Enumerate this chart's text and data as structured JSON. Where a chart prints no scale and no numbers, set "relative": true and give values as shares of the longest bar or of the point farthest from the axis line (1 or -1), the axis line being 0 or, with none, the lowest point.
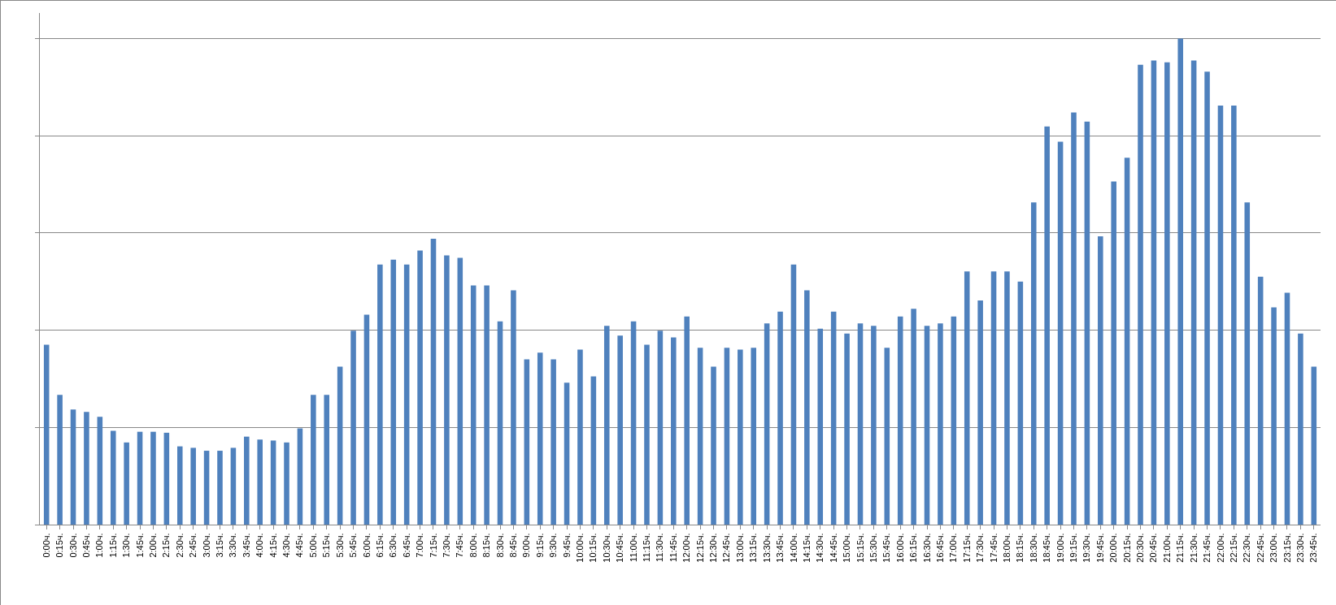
{
  "chart_data": {
    "type": "bar",
    "relative": true,
    "grid": "y",
    "color": "#4f81bd",
    "categories": [
      "0:00ч.",
      "0:15ч.",
      "0:30ч.",
      "0:45ч.",
      "1:00ч.",
      "1:15ч.",
      "1:30ч.",
      "1:45ч.",
      "2:00ч.",
      "2:15ч.",
      "2:30ч.",
      "2:45ч.",
      "3:00ч.",
      "3:15ч.",
      "3:30ч.",
      "3:45ч.",
      "4:00ч.",
      "4:15ч.",
      "4:30ч.",
      "4:45ч.",
      "5:00ч.",
      "5:15ч.",
      "5:30ч.",
      "5:45ч.",
      "6:00ч.",
      "6:15ч.",
      "6:30ч.",
      "6:45ч.",
      "7:00ч.",
      "7:15ч.",
      "7:30ч.",
      "7:45ч.",
      "8:00ч.",
      "8:15ч.",
      "8:30ч.",
      "8:45ч.",
      "9:00ч.",
      "9:15ч.",
      "9:30ч.",
      "9:45ч.",
      "10:00ч.",
      "10:15ч.",
      "10:30ч.",
      "10:45ч.",
      "11:00ч.",
      "11:15ч.",
      "11:30ч.",
      "11:45ч.",
      "12:00ч.",
      "12:15ч.",
      "12:30ч.",
      "12:45ч.",
      "13:00ч.",
      "13:15ч.",
      "13:30ч.",
      "13:45ч.",
      "14:00ч.",
      "14:15ч.",
      "14:30ч.",
      "14:45ч.",
      "15:00ч.",
      "15:15ч.",
      "15:30ч.",
      "15:45ч.",
      "16:00ч.",
      "16:15ч.",
      "16:30ч.",
      "16:45ч.",
      "17:00ч.",
      "17:15ч.",
      "17:30ч.",
      "17:45ч.",
      "18:00ч.",
      "18:15ч.",
      "18:30ч.",
      "18:45ч.",
      "19:00ч.",
      "19:15ч.",
      "19:30ч.",
      "19:45ч.",
      "20:00ч.",
      "20:15ч.",
      "20:30ч.",
      "20:45ч.",
      "21:00ч.",
      "21:15ч.",
      "21:30ч.",
      "21:45ч.",
      "22:00ч.",
      "22:15ч.",
      "22:30ч.",
      "22:45ч.",
      "23:00ч.",
      "23:15ч.",
      "23:30ч.",
      "23:45ч."
    ],
    "values": [
      0.37,
      0.267,
      0.237,
      0.232,
      0.222,
      0.193,
      0.169,
      0.191,
      0.191,
      0.189,
      0.161,
      0.158,
      0.152,
      0.152,
      0.158,
      0.181,
      0.175,
      0.173,
      0.169,
      0.198,
      0.267,
      0.267,
      0.325,
      0.399,
      0.432,
      0.535,
      0.545,
      0.535,
      0.564,
      0.588,
      0.554,
      0.549,
      0.492,
      0.492,
      0.418,
      0.482,
      0.34,
      0.354,
      0.34,
      0.292,
      0.36,
      0.305,
      0.409,
      0.389,
      0.418,
      0.37,
      0.399,
      0.385,
      0.428,
      0.364,
      0.325,
      0.364,
      0.36,
      0.364,
      0.414,
      0.438,
      0.535,
      0.482,
      0.403,
      0.438,
      0.393,
      0.414,
      0.409,
      0.364,
      0.428,
      0.444,
      0.409,
      0.414,
      0.428,
      0.521,
      0.461,
      0.521,
      0.521,
      0.5,
      0.663,
      0.819,
      0.788,
      0.848,
      0.829,
      0.593,
      0.706,
      0.755,
      0.946,
      0.955,
      0.951,
      1,
      0.955,
      0.932,
      0.862,
      0.862,
      0.663,
      0.51,
      0.447,
      0.477,
      0.393,
      0.325
    ]
  }
}
